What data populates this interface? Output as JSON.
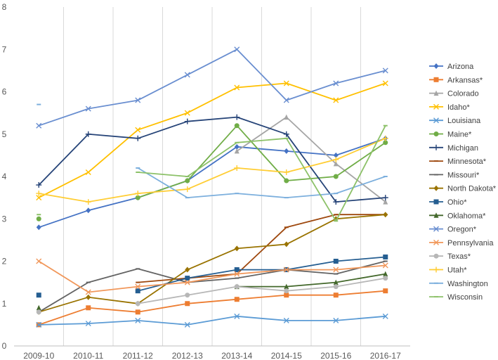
{
  "chart_data": {
    "type": "line",
    "title": "",
    "xlabel": "",
    "ylabel": "",
    "ylim": [
      0,
      8
    ],
    "yticks": [
      "0",
      "1",
      "2",
      "3",
      "4",
      "5",
      "6",
      "7",
      "8"
    ],
    "categories": [
      "2009-10",
      "2010-11",
      "2011-12",
      "2012-13",
      "2013-14",
      "2014-15",
      "2015-16",
      "2016-17"
    ],
    "grid": "vertical",
    "legend_position": "right",
    "series": [
      {
        "name": "Arizona",
        "color": "#4472C4",
        "marker": "diamond",
        "values": [
          2.8,
          3.2,
          3.5,
          3.9,
          4.7,
          4.6,
          4.5,
          4.9
        ]
      },
      {
        "name": "Arkansas*",
        "color": "#ED7D31",
        "marker": "square",
        "values": [
          0.5,
          0.9,
          0.8,
          1.0,
          1.1,
          1.2,
          1.2,
          1.3
        ]
      },
      {
        "name": "Colorado",
        "color": "#A5A5A5",
        "marker": "triangle",
        "values": [
          null,
          null,
          null,
          null,
          4.6,
          5.4,
          4.3,
          3.4
        ]
      },
      {
        "name": "Idaho*",
        "color": "#FFC000",
        "marker": "x",
        "values": [
          3.5,
          4.1,
          5.1,
          5.5,
          6.1,
          6.2,
          5.8,
          6.2
        ]
      },
      {
        "name": "Louisiana",
        "color": "#5B9BD5",
        "marker": "x",
        "values": [
          0.5,
          0.53,
          0.6,
          0.5,
          0.7,
          0.6,
          0.6,
          0.7
        ]
      },
      {
        "name": "Maine*",
        "color": "#70AD47",
        "marker": "circle",
        "values": [
          3.0,
          null,
          3.5,
          3.9,
          5.2,
          3.9,
          4.0,
          4.8
        ]
      },
      {
        "name": "Michigan",
        "color": "#264478",
        "marker": "plus",
        "values": [
          3.8,
          5.0,
          4.9,
          5.3,
          5.4,
          5.0,
          3.4,
          3.5
        ]
      },
      {
        "name": "Minnesota*",
        "color": "#9E480E",
        "marker": "dash",
        "values": [
          null,
          null,
          1.5,
          1.6,
          1.7,
          2.8,
          3.1,
          3.1
        ]
      },
      {
        "name": "Missouri*",
        "color": "#636363",
        "marker": "dash",
        "values": [
          0.8,
          1.5,
          1.82,
          1.5,
          1.6,
          1.8,
          1.7,
          2.0
        ]
      },
      {
        "name": "North Dakota*",
        "color": "#997300",
        "marker": "diamond",
        "values": [
          0.8,
          1.15,
          1.0,
          1.8,
          2.3,
          2.4,
          3.0,
          3.1
        ]
      },
      {
        "name": "Ohio*",
        "color": "#255E91",
        "marker": "square",
        "values": [
          1.2,
          null,
          1.3,
          1.6,
          1.8,
          1.8,
          2.0,
          2.1
        ]
      },
      {
        "name": "Oklahoma*",
        "color": "#43682B",
        "marker": "triangle",
        "values": [
          0.9,
          null,
          null,
          null,
          1.4,
          1.4,
          1.5,
          1.7
        ]
      },
      {
        "name": "Oregon*",
        "color": "#698ED0",
        "marker": "x",
        "values": [
          5.2,
          5.6,
          5.8,
          6.4,
          7.0,
          5.8,
          6.2,
          6.5
        ]
      },
      {
        "name": "Pennsylvania",
        "color": "#F1975A",
        "marker": "x",
        "values": [
          2.0,
          1.27,
          1.4,
          1.5,
          1.7,
          1.8,
          1.8,
          1.9
        ]
      },
      {
        "name": "Texas*",
        "color": "#B7B7B7",
        "marker": "circle",
        "values": [
          0.8,
          null,
          1.0,
          1.2,
          1.4,
          1.3,
          1.4,
          1.6
        ]
      },
      {
        "name": "Utah*",
        "color": "#FFCD33",
        "marker": "plus",
        "values": [
          3.6,
          3.4,
          3.6,
          3.7,
          4.2,
          4.1,
          4.4,
          4.9
        ]
      },
      {
        "name": "Washington",
        "color": "#7CAFDD",
        "marker": "dash",
        "values": [
          5.7,
          null,
          4.2,
          3.5,
          3.6,
          3.5,
          3.6,
          4.0
        ]
      },
      {
        "name": "Wisconsin",
        "color": "#8CC168",
        "marker": "dash",
        "values": [
          3.1,
          null,
          4.1,
          4.0,
          4.8,
          4.9,
          2.95,
          5.2
        ]
      }
    ]
  }
}
